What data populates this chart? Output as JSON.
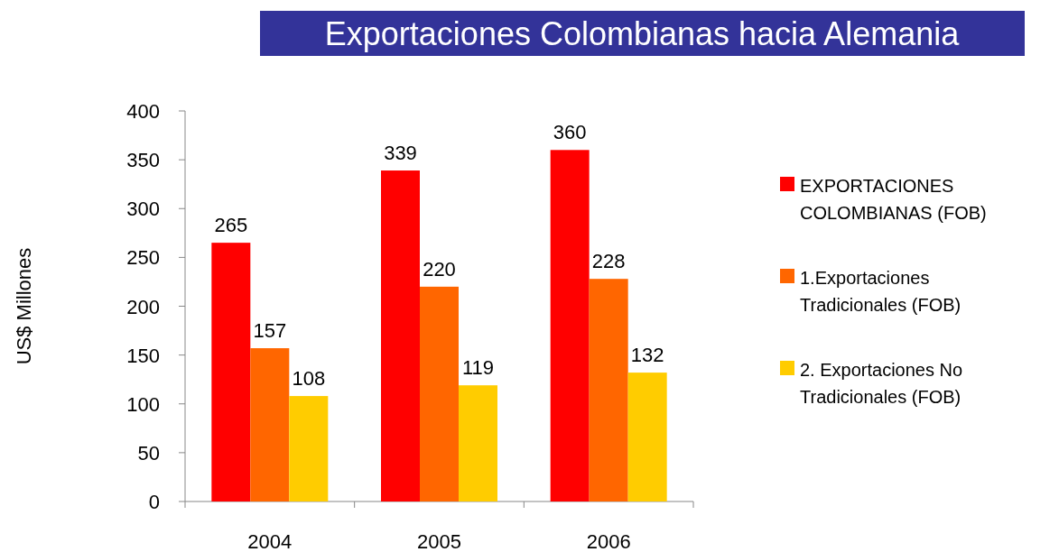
{
  "chart_data": {
    "type": "bar",
    "title": "Exportaciones Colombianas hacia Alemania",
    "ylabel": "US$ Millones",
    "categories": [
      "2004",
      "2005",
      "2006"
    ],
    "series": [
      {
        "name": "EXPORTACIONES COLOMBIANAS (FOB)",
        "color": "#ff0000",
        "values": [
          265,
          339,
          360
        ]
      },
      {
        "name": "1.Exportaciones Tradicionales (FOB)",
        "color": "#ff6600",
        "values": [
          157,
          220,
          228
        ]
      },
      {
        "name": "2. Exportaciones No Tradicionales (FOB)",
        "color": "#ffcc00",
        "values": [
          108,
          119,
          132
        ]
      }
    ],
    "ylim": [
      0,
      400
    ],
    "yticks": [
      0,
      50,
      100,
      150,
      200,
      250,
      300,
      350,
      400
    ],
    "data_labels": true,
    "legend": "right"
  }
}
